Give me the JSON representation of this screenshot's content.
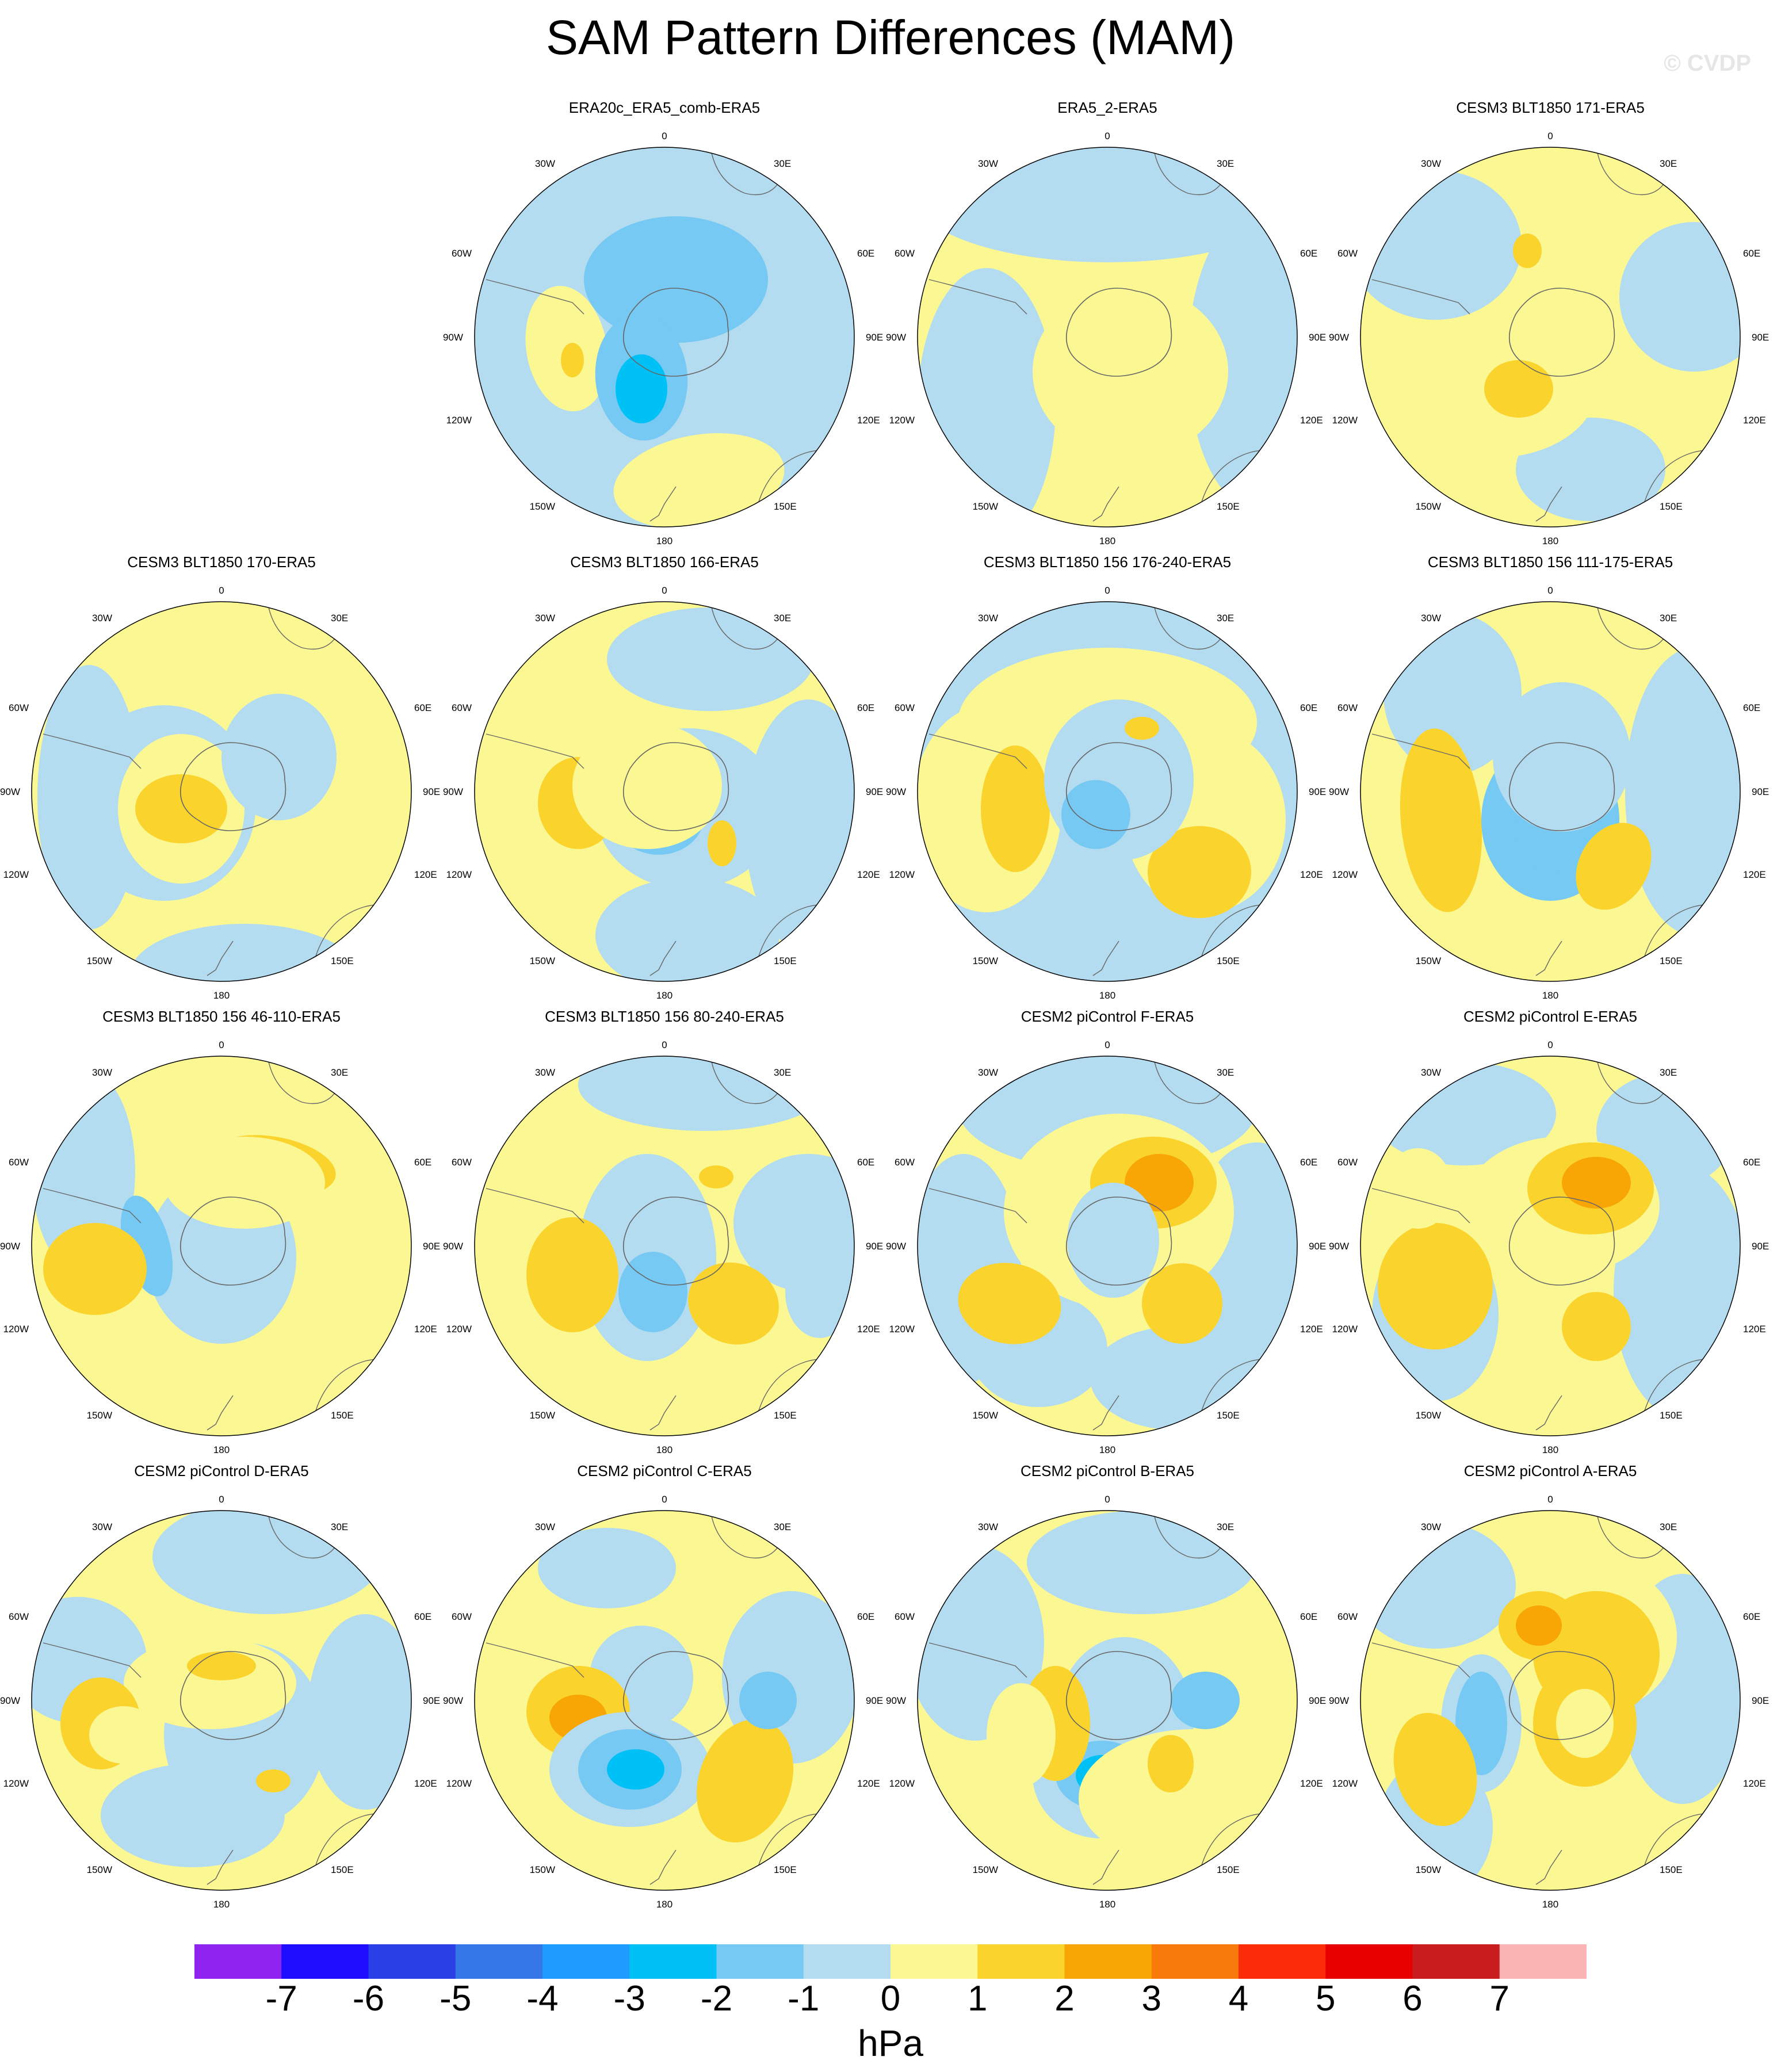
{
  "page": {
    "title": "SAM Pattern Differences (MAM)",
    "watermark": "© CVDP"
  },
  "map_labels": {
    "top": "0",
    "ne1": "30E",
    "ne2": "60E",
    "east": "90E",
    "se1": "120E",
    "se2": "150E",
    "bottom": "180",
    "sw2": "150W",
    "sw1": "120W",
    "west": "90W",
    "nw2": "60W",
    "nw1": "30W"
  },
  "panels": [
    {
      "title": "ERA20c_ERA5_comb-ERA5",
      "base": "#b4dcf0"
    },
    {
      "title": "ERA5_2-ERA5",
      "base": "#fbf793"
    },
    {
      "title": "CESM3 BLT1850 171-ERA5",
      "base": "#fbf793"
    },
    {
      "title": "CESM3 BLT1850 170-ERA5",
      "base": "#fbf793"
    },
    {
      "title": "CESM3 BLT1850 166-ERA5",
      "base": "#fbf793"
    },
    {
      "title": "CESM3 BLT1850 156 176-240-ERA5",
      "base": "#b4dcf0"
    },
    {
      "title": "CESM3 BLT1850 156 111-175-ERA5",
      "base": "#fbf793"
    },
    {
      "title": "CESM3 BLT1850 156 46-110-ERA5",
      "base": "#fbf793"
    },
    {
      "title": "CESM3 BLT1850 156 80-240-ERA5",
      "base": "#fbf793"
    },
    {
      "title": "CESM2 piControl F-ERA5",
      "base": "#fbf793"
    },
    {
      "title": "CESM2 piControl E-ERA5",
      "base": "#fbf793"
    },
    {
      "title": "CESM2 piControl D-ERA5",
      "base": "#fbf793"
    },
    {
      "title": "CESM2 piControl C-ERA5",
      "base": "#fbf793"
    },
    {
      "title": "CESM2 piControl B-ERA5",
      "base": "#fbf793"
    },
    {
      "title": "CESM2 piControl A-ERA5",
      "base": "#fbf793"
    }
  ],
  "colorbar": {
    "units": "hPa",
    "colors": [
      "#8f23f0",
      "#1f0dff",
      "#2b3fe6",
      "#3576e8",
      "#1f9cff",
      "#00c1f5",
      "#76c9f2",
      "#b4dcf0",
      "#fbf793",
      "#fad42d",
      "#f8a506",
      "#f87a0a",
      "#fa2d08",
      "#e60000",
      "#c91c1c",
      "#fbb4b4"
    ],
    "labels": [
      "-7",
      "-6",
      "-5",
      "-4",
      "-3",
      "-2",
      "-1",
      "0",
      "1",
      "2",
      "3",
      "4",
      "5",
      "6",
      "7"
    ]
  }
}
